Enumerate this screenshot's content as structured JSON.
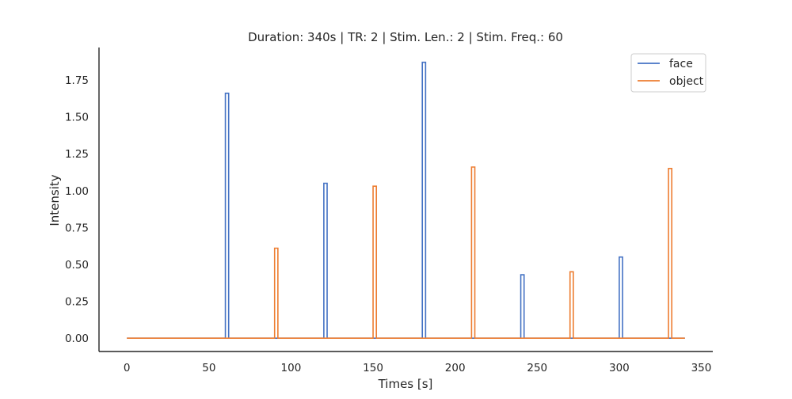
{
  "chart_data": {
    "type": "line",
    "title": "Duration: 340s | TR: 2 | Stim. Len.: 2 | Stim. Freq.: 60",
    "xlabel": "Times [s]",
    "ylabel": "Intensity",
    "xlim": [
      -17,
      357
    ],
    "ylim": [
      -0.09,
      1.97
    ],
    "x_ticks": [
      0,
      50,
      100,
      150,
      200,
      250,
      300,
      350
    ],
    "y_ticks": [
      0.0,
      0.25,
      0.5,
      0.75,
      1.0,
      1.25,
      1.5,
      1.75
    ],
    "x_tick_labels": [
      "0",
      "50",
      "100",
      "150",
      "200",
      "250",
      "300",
      "350"
    ],
    "y_tick_labels": [
      "0.00",
      "0.25",
      "0.50",
      "0.75",
      "1.00",
      "1.25",
      "1.50",
      "1.75"
    ],
    "grid": false,
    "legend_position": "top-right",
    "duration": 340,
    "stim_length": 2,
    "series": [
      {
        "name": "face",
        "color": "#4472c4",
        "pulses": [
          {
            "onset": 60,
            "value": 1.66
          },
          {
            "onset": 120,
            "value": 1.05
          },
          {
            "onset": 180,
            "value": 1.87
          },
          {
            "onset": 240,
            "value": 0.43
          },
          {
            "onset": 300,
            "value": 0.55
          }
        ]
      },
      {
        "name": "object",
        "color": "#ed7d31",
        "pulses": [
          {
            "onset": 90,
            "value": 0.61
          },
          {
            "onset": 150,
            "value": 1.03
          },
          {
            "onset": 210,
            "value": 1.16
          },
          {
            "onset": 270,
            "value": 0.45
          },
          {
            "onset": 330,
            "value": 1.15
          }
        ]
      }
    ]
  }
}
